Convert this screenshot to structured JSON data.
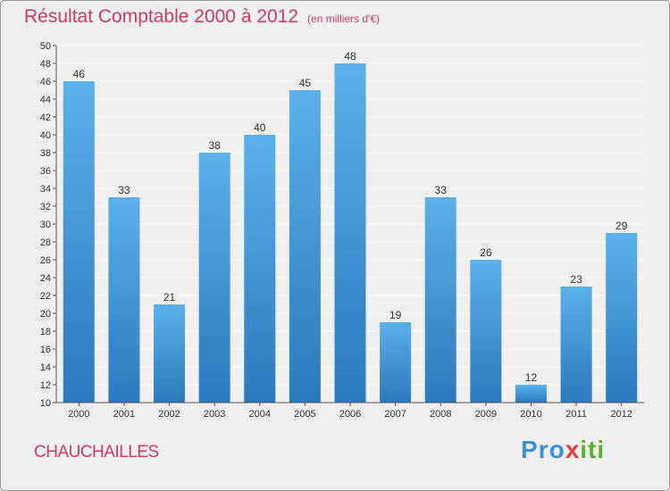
{
  "title": "Résultat Comptable 2000 à 2012",
  "subtitle": "(en milliers d'€)",
  "commune": "CHAUCHAILLES",
  "logo": {
    "p1": "Pro",
    "p2": "x",
    "p3": "iti"
  },
  "colors": {
    "bar_top": "#5bb0ea",
    "bar_bottom": "#2b79bd",
    "title": "#d03a63",
    "grid": "#ffffff",
    "axis": "#555555"
  },
  "chart_data": {
    "type": "bar",
    "categories": [
      "2000",
      "2001",
      "2002",
      "2003",
      "2004",
      "2005",
      "2006",
      "2007",
      "2008",
      "2009",
      "2010",
      "2011",
      "2012"
    ],
    "values": [
      46,
      33,
      21,
      38,
      40,
      45,
      48,
      19,
      33,
      26,
      12,
      23,
      29
    ],
    "title": "Résultat Comptable 2000 à 2012",
    "xlabel": "",
    "ylabel": "",
    "ylim": [
      10,
      50
    ],
    "yticks": [
      10,
      12,
      14,
      16,
      18,
      20,
      22,
      24,
      26,
      28,
      30,
      32,
      34,
      36,
      38,
      40,
      42,
      44,
      46,
      48,
      50
    ],
    "grid": true,
    "data_labels": true
  }
}
